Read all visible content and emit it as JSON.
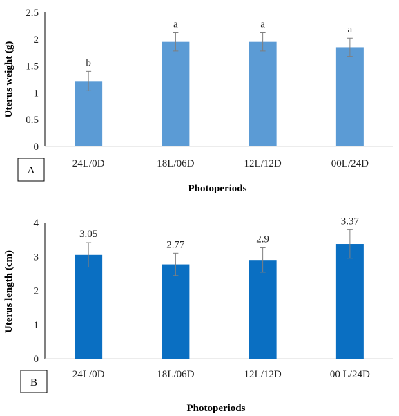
{
  "colors": {
    "chart_a_bar": "#5b9bd5",
    "chart_b_bar": "#0a6fc2",
    "error_bar": "#7f7f7f",
    "axis": "#000000"
  },
  "chart_data": [
    {
      "type": "bar",
      "panel_label": "A",
      "categories": [
        "24L/0D",
        "18L/06D",
        "12L/12D",
        "00L/24D"
      ],
      "values": [
        1.22,
        1.95,
        1.95,
        1.85
      ],
      "error": [
        0.18,
        0.17,
        0.17,
        0.17
      ],
      "data_labels": [
        "b",
        "a",
        "a",
        "a"
      ],
      "ylabel": "Uterus weight (g)",
      "xlabel": "Photoperiods",
      "ylim": [
        0,
        2.5
      ],
      "yticks": [
        "0",
        "0.5",
        "1",
        "1.5",
        "2",
        "2.5"
      ],
      "grid": false
    },
    {
      "type": "bar",
      "panel_label": "B",
      "categories": [
        "24L/0D",
        "18L/06D",
        "12L/12D",
        "00 L/24D"
      ],
      "values": [
        3.05,
        2.77,
        2.9,
        3.37
      ],
      "error": [
        0.36,
        0.33,
        0.36,
        0.42
      ],
      "data_labels": [
        "3.05",
        "2.77",
        "2.9",
        "3.37"
      ],
      "ylabel": "Uterus length (cm)",
      "xlabel": "Photoperiods",
      "ylim": [
        0,
        4
      ],
      "yticks": [
        "0",
        "1",
        "2",
        "3",
        "4"
      ],
      "grid": false
    }
  ]
}
